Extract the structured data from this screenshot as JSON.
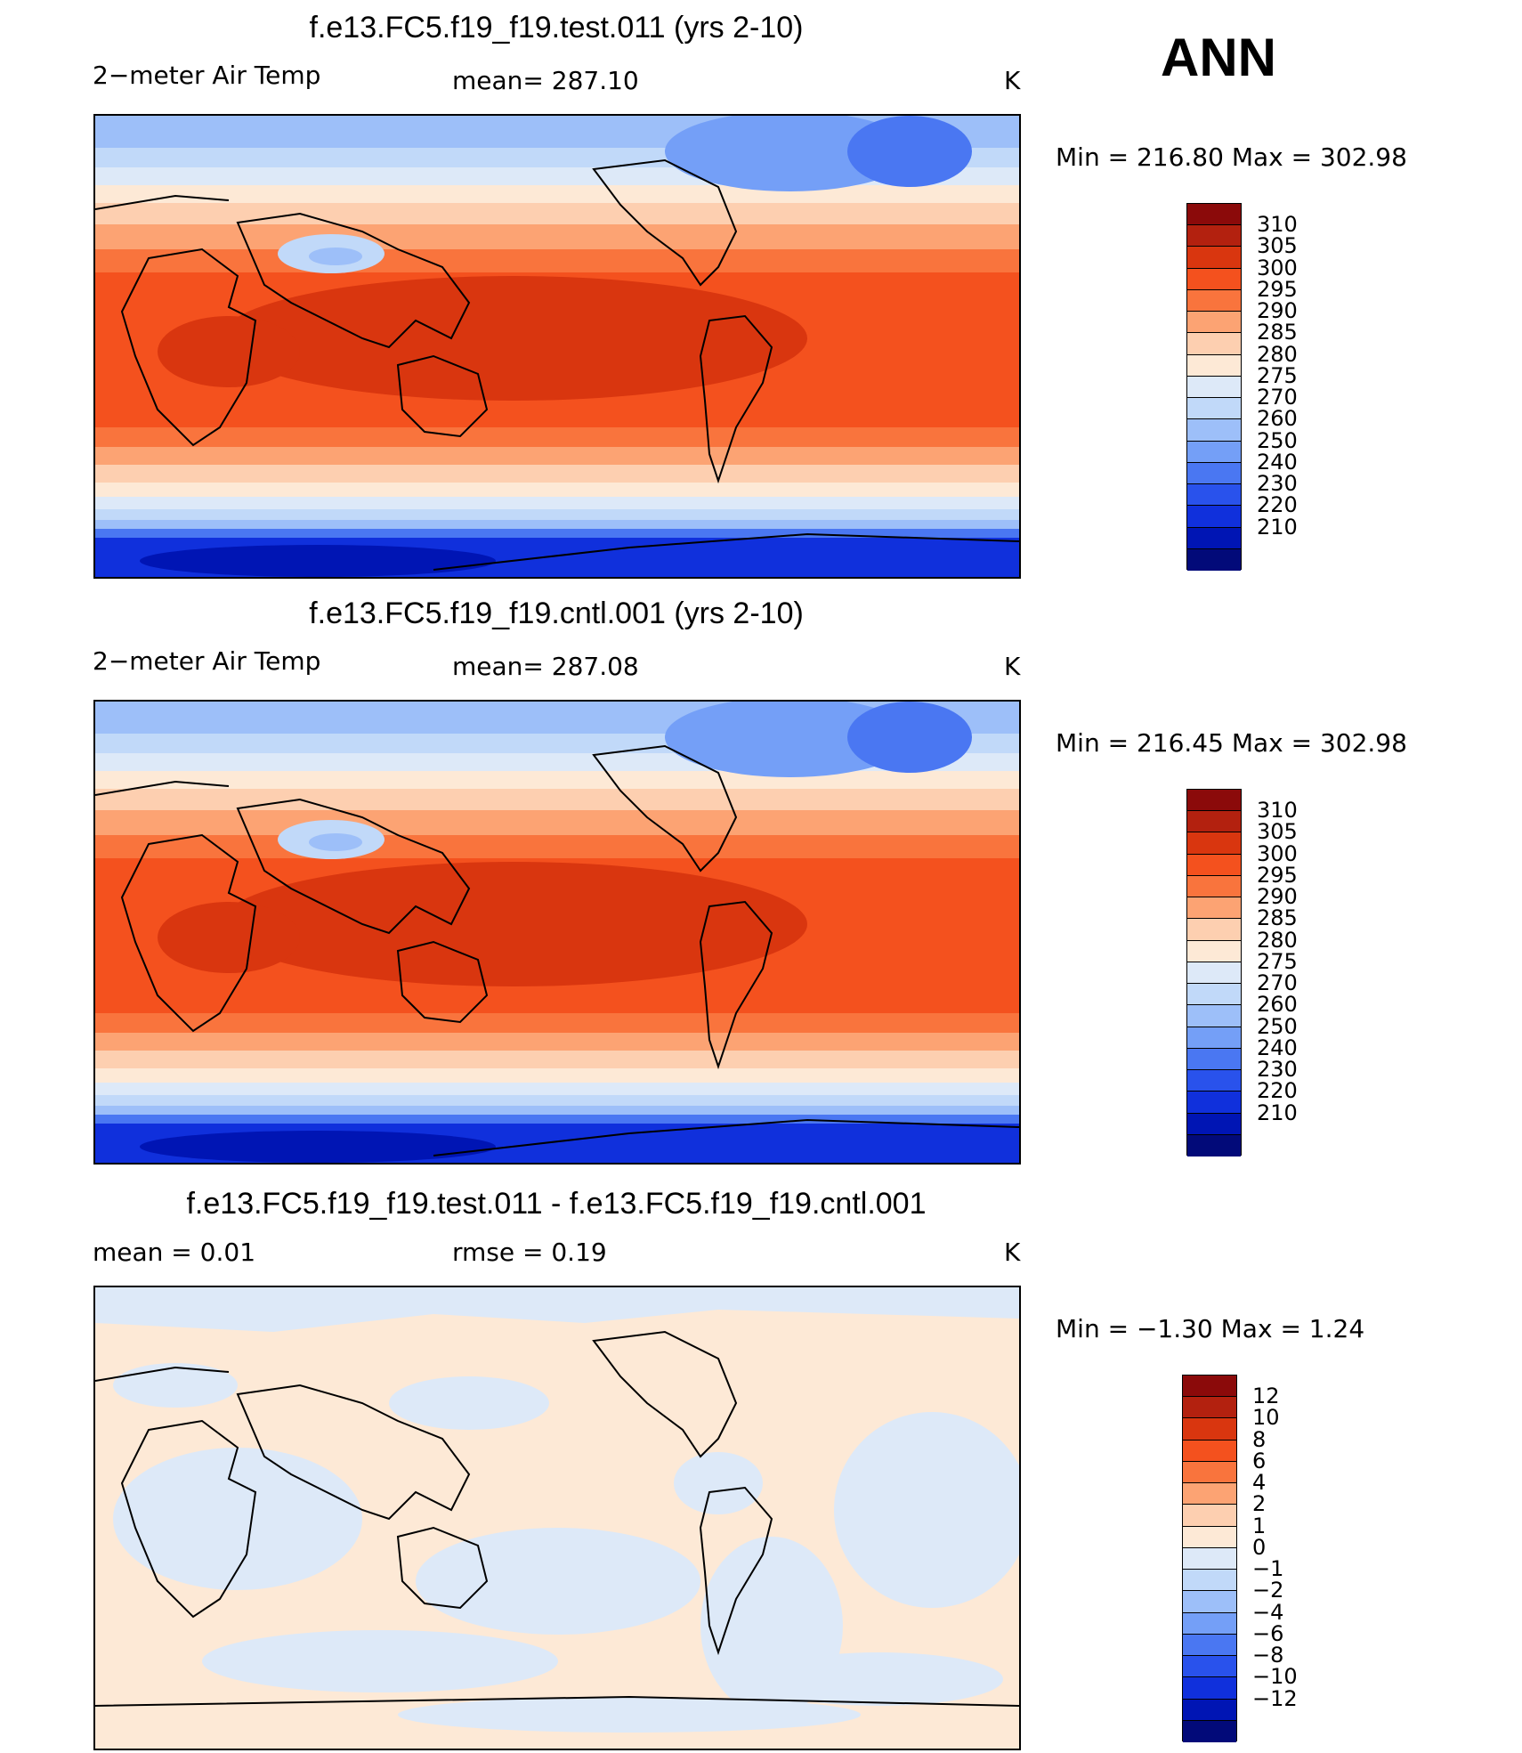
{
  "season": "ANN",
  "panels": [
    {
      "title": "f.e13.FC5.f19_f19.test.011 (yrs 2-10)",
      "left_label": "2−meter Air Temp",
      "center_label": "mean= 287.10",
      "units": "K",
      "minmax": "Min  =  216.80  Max  =  302.98",
      "colorbar": {
        "colors": [
          "#8b0a0a",
          "#b3210f",
          "#d9360f",
          "#f4511e",
          "#f9743d",
          "#fca373",
          "#fdcfb0",
          "#fde9d6",
          "#dde9f8",
          "#c1d9f9",
          "#9dbff9",
          "#749ff7",
          "#4a77f2",
          "#2952ec",
          "#1030dc",
          "#0015b4",
          "#020a79"
        ],
        "ticks": [
          "310",
          "305",
          "300",
          "295",
          "290",
          "285",
          "280",
          "275",
          "270",
          "260",
          "250",
          "240",
          "230",
          "220",
          "210"
        ]
      }
    },
    {
      "title": "f.e13.FC5.f19_f19.cntl.001 (yrs 2-10)",
      "left_label": "2−meter Air Temp",
      "center_label": "mean= 287.08",
      "units": "K",
      "minmax": "Min  =  216.45  Max  =  302.98",
      "colorbar": {
        "colors": [
          "#8b0a0a",
          "#b3210f",
          "#d9360f",
          "#f4511e",
          "#f9743d",
          "#fca373",
          "#fdcfb0",
          "#fde9d6",
          "#dde9f8",
          "#c1d9f9",
          "#9dbff9",
          "#749ff7",
          "#4a77f2",
          "#2952ec",
          "#1030dc",
          "#0015b4",
          "#020a79"
        ],
        "ticks": [
          "310",
          "305",
          "300",
          "295",
          "290",
          "285",
          "280",
          "275",
          "270",
          "260",
          "250",
          "240",
          "230",
          "220",
          "210"
        ]
      }
    },
    {
      "title": "f.e13.FC5.f19_f19.test.011 - f.e13.FC5.f19_f19.cntl.001",
      "left_label": "mean  =      0.01",
      "center_label": "rmse  =      0.19",
      "units": "K",
      "minmax": "Min  =   −1.30  Max  =      1.24",
      "colorbar": {
        "colors": [
          "#8b0a0a",
          "#b3210f",
          "#d9360f",
          "#f4511e",
          "#f9743d",
          "#fca373",
          "#fdcfb0",
          "#fde9d6",
          "#dde9f8",
          "#c1d9f9",
          "#9dbff9",
          "#749ff7",
          "#4a77f2",
          "#2952ec",
          "#1030dc",
          "#0015b4",
          "#020a79"
        ],
        "ticks": [
          "12",
          "10",
          "8",
          "6",
          "4",
          "2",
          "1",
          "0",
          "−1",
          "−2",
          "−4",
          "−6",
          "−8",
          "−10",
          "−12"
        ]
      }
    }
  ],
  "colors": {
    "frame": "#000000",
    "diff_pos": "#fde9d6",
    "diff_neg": "#dde9f8"
  }
}
